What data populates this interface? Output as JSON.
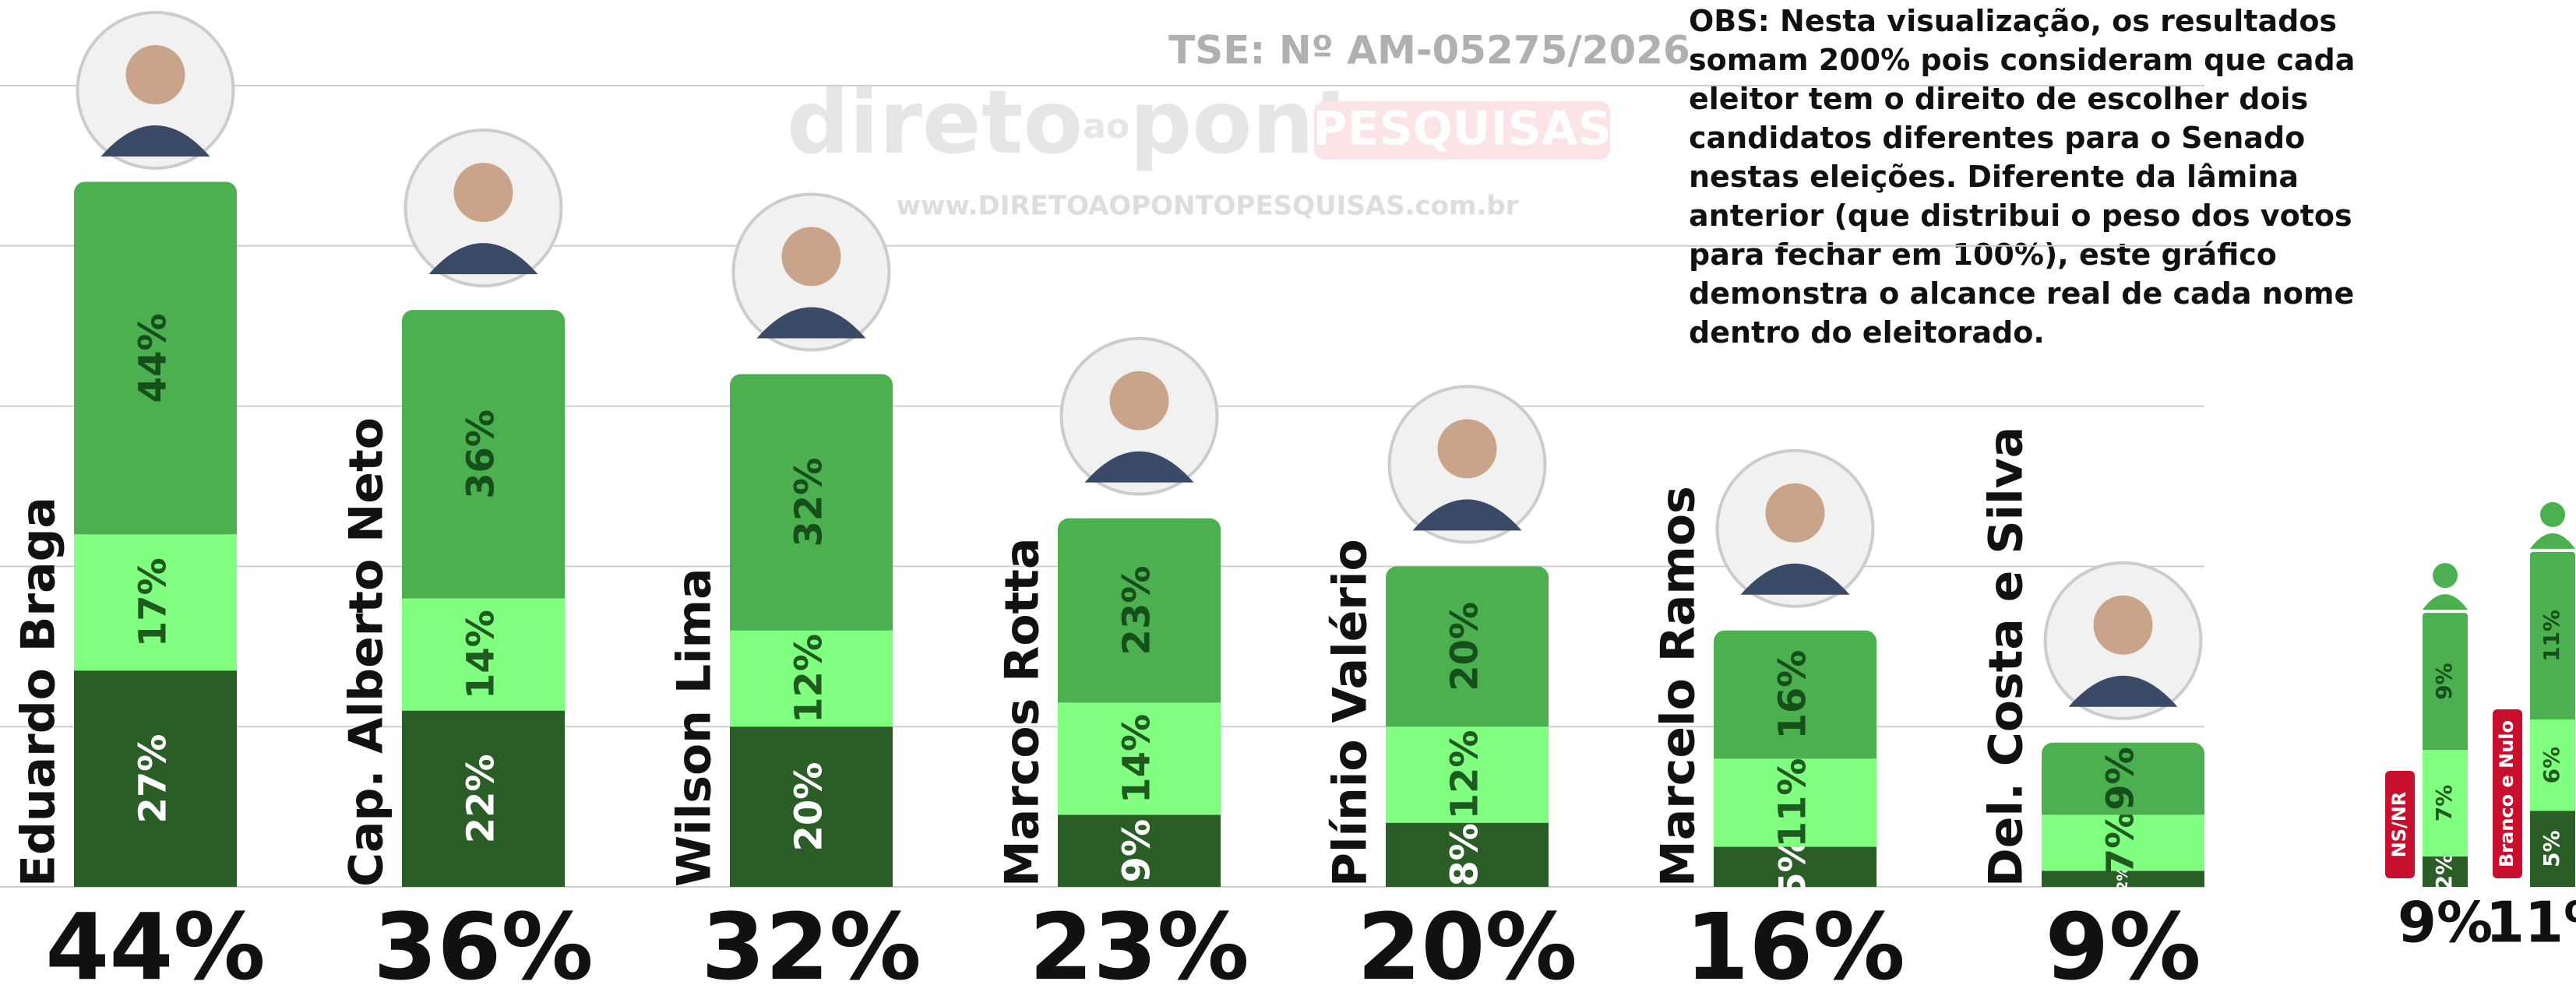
{
  "chart_data": {
    "type": "bar",
    "stacked": true,
    "registration": "TSE: Nº AM-05275/2026",
    "brand": {
      "name_parts": [
        "direto",
        "ao",
        "ponto"
      ],
      "tag": "PESQUISAS",
      "url": "www.DIRETOAOPONTOPESQUISAS.com.br"
    },
    "note_lines": [
      "OBS: Nesta visualização, os resultados",
      "somam 200% pois consideram que cada",
      "eleitor tem o direito de escolher dois",
      "candidatos diferentes para o Senado",
      "nestas eleições. Diferente da lâmina",
      "anterior (que distribui o peso dos votos",
      "para fechar em 100%), este gráfico",
      "demonstra o alcance real de cada nome",
      "dentro do eleitorado."
    ],
    "categories": [
      "Eduardo Braga",
      "Cap. Alberto Neto",
      "Wilson  Lima",
      "Marcos Rotta",
      "Plínio Valério",
      "Marcelo Ramos",
      "Del. Costa e Silva",
      "NS/NR",
      "Branco e Nulo"
    ],
    "series": [
      {
        "color": "#2b5e27",
        "label_color": "#ffffff",
        "values": [
          27,
          22,
          20,
          9,
          8,
          5,
          2,
          2,
          5
        ],
        "value_labels": [
          "27%",
          "22%",
          "20%",
          "9%",
          "8%",
          "5%",
          "2%",
          "2%",
          "5%"
        ]
      },
      {
        "color": "#80ff80",
        "label_color": "#1f5a1f",
        "values": [
          17,
          14,
          12,
          14,
          12,
          11,
          7,
          7,
          6
        ],
        "value_labels": [
          "17%",
          "14%",
          "12%",
          "14%",
          "12%",
          "11%",
          "7%",
          "7%",
          "6%"
        ]
      },
      {
        "color": "#4caf50",
        "label_color": "#15501a",
        "values": [
          44,
          36,
          32,
          23,
          20,
          16,
          9,
          9,
          11
        ],
        "value_labels": [
          "44%",
          "36%",
          "32%",
          "23%",
          "20%",
          "16%",
          "9%",
          "9%",
          "11%"
        ]
      }
    ],
    "ylim": [
      0,
      100
    ],
    "yticks": [
      0,
      20,
      40,
      60,
      80,
      100
    ],
    "grid": true
  }
}
